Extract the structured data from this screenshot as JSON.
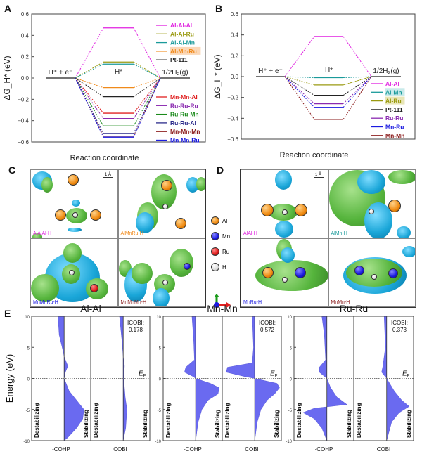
{
  "panels": {
    "A": "A",
    "B": "B",
    "C": "C",
    "D": "D",
    "E": "E"
  },
  "chart_data": [
    {
      "type": "energy-level diagram",
      "panel": "A",
      "ylabel": "ΔG_H* (eV)",
      "xlabel": "Reaction coordinate",
      "ylim": [
        -0.6,
        0.6
      ],
      "yticks": [
        "0.6",
        "0.4",
        "0.2",
        "0.0",
        "-0.2",
        "-0.4",
        "-0.6"
      ],
      "states": [
        "H⁺ + e⁻",
        "H*",
        "1/2H₂(g)"
      ],
      "series": [
        {
          "name": "Al-Al-Al",
          "value": 0.47,
          "color": "#e020e0"
        },
        {
          "name": "Al-Al-Ru",
          "value": 0.15,
          "color": "#9a9a10"
        },
        {
          "name": "Al-Al-Mn",
          "value": 0.13,
          "color": "#1a9a9a"
        },
        {
          "name": "Al-Mn-Ru",
          "value": -0.09,
          "color": "#f08a1a",
          "highlight": "#fbd8b8"
        },
        {
          "name": "Pt-111",
          "value": -0.175,
          "color": "#222222"
        },
        {
          "name": "Mn-Mn-Al",
          "value": -0.33,
          "color": "#e02020"
        },
        {
          "name": "Ru-Ru-Ru",
          "value": -0.38,
          "color": "#8a2ab0"
        },
        {
          "name": "Ru-Ru-Mn",
          "value": -0.45,
          "color": "#1a8a1a"
        },
        {
          "name": "Ru-Ru-Al",
          "value": -0.52,
          "color": "#2a2a8a"
        },
        {
          "name": "Mn-Mn-Mn",
          "value": -0.545,
          "color": "#8a1a1a"
        },
        {
          "name": "Mn-Mn-Ru",
          "value": -0.555,
          "color": "#1a1ae0"
        }
      ]
    },
    {
      "type": "energy-level diagram",
      "panel": "B",
      "ylabel": "ΔG_H* (eV)",
      "xlabel": "Reaction coordinate",
      "ylim": [
        -0.6,
        0.6
      ],
      "yticks": [
        "0.6",
        "0.4",
        "0.2",
        "0.0",
        "-0.2",
        "-0.4",
        "-0.6"
      ],
      "states": [
        "H⁺ + e⁻",
        "H*",
        "1/2H₂(g)"
      ],
      "series": [
        {
          "name": "Al-Al",
          "value": 0.385,
          "color": "#e020e0"
        },
        {
          "name": "Al-Mn",
          "value": -0.01,
          "color": "#1a9a9a",
          "highlight": "#c8eaea"
        },
        {
          "name": "Al-Ru",
          "value": -0.08,
          "color": "#9a9a10",
          "highlight": "#e8e6b8"
        },
        {
          "name": "Pt-111",
          "value": -0.18,
          "color": "#222222"
        },
        {
          "name": "Ru-Ru",
          "value": -0.26,
          "color": "#8a2ab0"
        },
        {
          "name": "Mn-Ru",
          "value": -0.295,
          "color": "#1a1ae0"
        },
        {
          "name": "Mn-Mn",
          "value": -0.41,
          "color": "#8a1a1a"
        }
      ]
    },
    {
      "type": "area",
      "panel": "E",
      "ylabel": "Energy (eV)",
      "ylim": [
        -10,
        10
      ],
      "yticks": [
        "10",
        "5",
        "0",
        "-5",
        "-10"
      ],
      "fermi_label": "E",
      "fermi_sub": "F",
      "side_labels": {
        "left": "Destabilizing",
        "right": "Stabilizing"
      },
      "xlabels": [
        "-COHP",
        "COBI"
      ],
      "fill": "#6a6af0",
      "subplots": [
        {
          "title": "Al-Al",
          "icobi_label": "ICOBI:",
          "icobi": "0.178",
          "cohp": [
            [
              10,
              -0.25
            ],
            [
              7,
              -0.2
            ],
            [
              4.5,
              -0.05
            ],
            [
              3.5,
              0
            ],
            [
              2,
              0.15
            ],
            [
              1,
              0.05
            ],
            [
              0,
              0
            ],
            [
              -2,
              0.2
            ],
            [
              -4,
              0.6
            ],
            [
              -5,
              0.8
            ],
            [
              -6.5,
              0.75
            ],
            [
              -8,
              0.5
            ],
            [
              -9.5,
              0.15
            ],
            [
              -10,
              0
            ]
          ],
          "cobi": [
            [
              10,
              -0.15
            ],
            [
              6,
              -0.05
            ],
            [
              3.5,
              0
            ],
            [
              2,
              0.05
            ],
            [
              0,
              0.02
            ],
            [
              -3,
              0.08
            ],
            [
              -5,
              0.15
            ],
            [
              -8,
              0.1
            ],
            [
              -10,
              0
            ]
          ]
        },
        {
          "title": "Mn-Mn",
          "icobi_label": "ICOBI:",
          "icobi": "0.572",
          "cohp": [
            [
              10,
              -0.15
            ],
            [
              6,
              -0.08
            ],
            [
              3,
              -0.05
            ],
            [
              1.8,
              -0.4
            ],
            [
              1,
              -0.45
            ],
            [
              0.3,
              -0.1
            ],
            [
              0,
              0
            ],
            [
              -0.8,
              0.6
            ],
            [
              -1.5,
              0.95
            ],
            [
              -2.5,
              0.9
            ],
            [
              -3.5,
              0.5
            ],
            [
              -5,
              0.25
            ],
            [
              -7,
              0.1
            ],
            [
              -10,
              0
            ]
          ],
          "cobi": [
            [
              10,
              -0.1
            ],
            [
              5,
              -0.05
            ],
            [
              2.5,
              -0.1
            ],
            [
              1.8,
              -1.1
            ],
            [
              1,
              -1.15
            ],
            [
              0.3,
              -0.4
            ],
            [
              0,
              0
            ],
            [
              -0.8,
              0.9
            ],
            [
              -1.5,
              1.0
            ],
            [
              -2.5,
              0.8
            ],
            [
              -3.5,
              0.5
            ],
            [
              -5,
              0.25
            ],
            [
              -7,
              0.1
            ],
            [
              -10,
              0
            ]
          ]
        },
        {
          "title": "Ru-Ru",
          "icobi_label": "ICOBI:",
          "icobi": "0.373",
          "cohp": [
            [
              10,
              -0.2
            ],
            [
              7,
              -0.1
            ],
            [
              3,
              -0.05
            ],
            [
              1.8,
              -0.3
            ],
            [
              1,
              -0.3
            ],
            [
              0,
              0
            ],
            [
              -1.5,
              0.15
            ],
            [
              -3,
              0.4
            ],
            [
              -4.2,
              0.8
            ],
            [
              -4.8,
              -0.5
            ],
            [
              -5.5,
              -0.95
            ],
            [
              -6.5,
              -0.5
            ],
            [
              -8,
              -0.2
            ],
            [
              -10,
              0
            ]
          ],
          "cobi": [
            [
              10,
              -0.1
            ],
            [
              5,
              -0.05
            ],
            [
              2,
              -0.15
            ],
            [
              1,
              -0.2
            ],
            [
              0,
              0
            ],
            [
              -2,
              0.3
            ],
            [
              -3.5,
              0.6
            ],
            [
              -4.5,
              0.9
            ],
            [
              -5.5,
              0.5
            ],
            [
              -7,
              0.2
            ],
            [
              -10,
              0
            ]
          ]
        }
      ]
    }
  ],
  "structures": {
    "scale_bar": "1 Å",
    "C": [
      "AlAlAl-H",
      "AlMnRu-H",
      "MnMnRu-H",
      "MnMnMn-H"
    ],
    "D": [
      "AlAl-H",
      "AlMn-H",
      "MnRu-H",
      "MnMn-H"
    ],
    "C_colors": [
      "#e020e0",
      "#f08a1a",
      "#1a1ae0",
      "#8a1a1a"
    ],
    "D_colors": [
      "#e020e0",
      "#1a9a9a",
      "#1a1ae0",
      "#8a1a1a"
    ],
    "legend": [
      {
        "label": "Al",
        "cls": "al"
      },
      {
        "label": "Mn",
        "cls": "mn"
      },
      {
        "label": "Ru",
        "cls": "ru"
      },
      {
        "label": "H",
        "cls": "h"
      }
    ]
  }
}
